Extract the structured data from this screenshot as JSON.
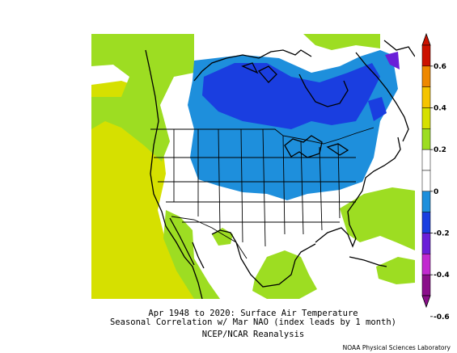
{
  "caption": {
    "line1": "Apr 1948 to 2020: Surface Air Temperature",
    "line2": "Seasonal Correlation w/ Mar NAO (index leads by 1 month)",
    "line3": "NCEP/NCAR Reanalysis"
  },
  "credit": "NOAA Physical Sciences Laboratory",
  "colorbar": {
    "ticks": [
      {
        "label": "0.6"
      },
      {
        "label": "0.4"
      },
      {
        "label": "0.2"
      },
      {
        "label": "0"
      },
      {
        "label": "-0.2"
      },
      {
        "label": "-0.4"
      },
      {
        "label": "-0.6"
      }
    ],
    "bins": [
      {
        "color": "#cc1100"
      },
      {
        "color": "#ee8800"
      },
      {
        "color": "#f5c400"
      },
      {
        "color": "#d6e000"
      },
      {
        "color": "#9ddd22"
      },
      {
        "color": "#ffffff"
      },
      {
        "color": "#ffffff"
      },
      {
        "color": "#1e8fdc"
      },
      {
        "color": "#1a3ee0"
      },
      {
        "color": "#6a1fd8"
      },
      {
        "color": "#c22ad0"
      },
      {
        "color": "#8a0f8a"
      }
    ]
  },
  "map": {
    "region": "North America",
    "variable": "Surface Air Temperature",
    "palette": {
      "pos_02_04": "#d6e000",
      "pos_01_02": "#9ddd22",
      "neutral": "#ffffff",
      "neg_01_02": "#1e8fdc",
      "neg_02_03": "#1a3ee0",
      "neg_03_04": "#6a1fd8"
    }
  }
}
